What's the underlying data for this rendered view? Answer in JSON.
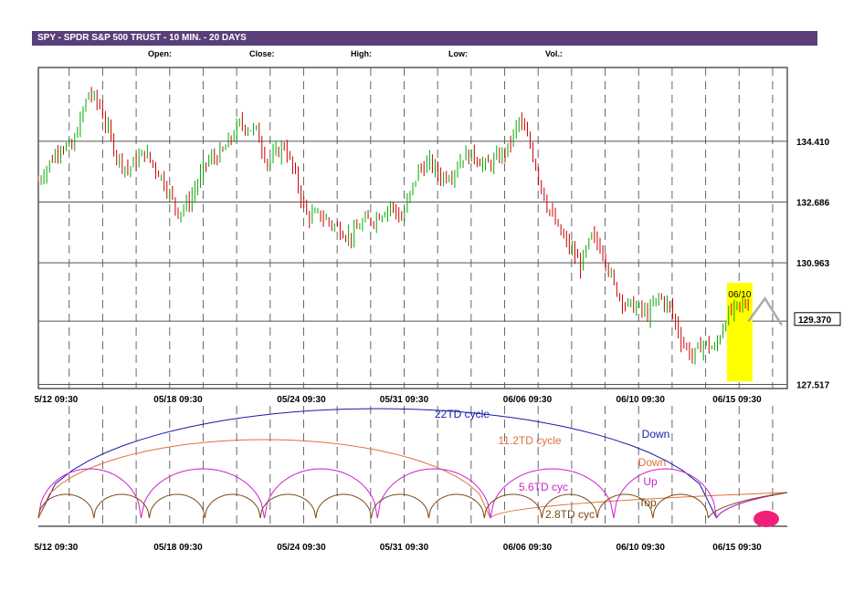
{
  "header": {
    "title": "SPY - SPDR S&P 500 TRUST - 10 MIN. - 20 DAYS",
    "fields": [
      {
        "label": "Open:"
      },
      {
        "label": "Close:"
      },
      {
        "label": "High:"
      },
      {
        "label": "Low:"
      },
      {
        "label": "Vol.:"
      }
    ]
  },
  "chart_data": [
    {
      "type": "candlestick",
      "title": "SPY - SPDR S&P 500 TRUST - 10 MIN. - 20 DAYS",
      "y_ticks": [
        "134.410",
        "132.686",
        "130.963",
        "127.517"
      ],
      "y_tick_values": [
        134.41,
        132.686,
        130.963,
        127.517
      ],
      "ylim": [
        127.4,
        136.5
      ],
      "last_price_label": "129.370",
      "last_price": 129.37,
      "x_ticks": [
        "5/12 09:30",
        "05/18 09:30",
        "05/24 09:30",
        "05/31 09:30",
        "06/06 09:30",
        "06/10 09:30",
        "06/15 09:30"
      ],
      "grid": true,
      "colors": {
        "up": "#00aa00",
        "down": "#cc0000",
        "highlight": "#ffff00",
        "projection": "#aaaaaa"
      },
      "highlight_label": "06/10",
      "price_path": [
        [
          0,
          133.3
        ],
        [
          4,
          134.3
        ],
        [
          6,
          134.2
        ],
        [
          9,
          135.8
        ],
        [
          11,
          135.4
        ],
        [
          14,
          134.0
        ],
        [
          16,
          133.6
        ],
        [
          19,
          134.1
        ],
        [
          22,
          133.4
        ],
        [
          25,
          132.4
        ],
        [
          27,
          132.7
        ],
        [
          30,
          133.8
        ],
        [
          33,
          134.1
        ],
        [
          36,
          134.9
        ],
        [
          39,
          134.7
        ],
        [
          41,
          133.8
        ],
        [
          44,
          134.3
        ],
        [
          46,
          133.4
        ],
        [
          48,
          132.3
        ],
        [
          50.5,
          132.3
        ],
        [
          53,
          132.0
        ],
        [
          56,
          131.7
        ],
        [
          58,
          132.1
        ],
        [
          60,
          132.2
        ],
        [
          63,
          132.6
        ],
        [
          65,
          132.2
        ],
        [
          68,
          133.6
        ],
        [
          70,
          133.8
        ],
        [
          72,
          133.4
        ],
        [
          74,
          133.5
        ],
        [
          76,
          134.0
        ],
        [
          78,
          134.0
        ],
        [
          80,
          133.7
        ],
        [
          82,
          133.9
        ],
        [
          84,
          134.2
        ],
        [
          86,
          135.0
        ],
        [
          88,
          134.3
        ],
        [
          89.5,
          133.4
        ],
        [
          91,
          132.6
        ],
        [
          93,
          131.9
        ],
        [
          95,
          131.4
        ],
        [
          97,
          130.9
        ],
        [
          99,
          131.7
        ],
        [
          101,
          131.3
        ],
        [
          103,
          130.3
        ],
        [
          105,
          129.8
        ],
        [
          107,
          129.7
        ],
        [
          109,
          129.5
        ],
        [
          111,
          130.0
        ],
        [
          113,
          129.7
        ],
        [
          115,
          128.8
        ],
        [
          117,
          128.3
        ],
        [
          119,
          128.7
        ],
        [
          121,
          128.5
        ],
        [
          123,
          129.4
        ],
        [
          125,
          129.7
        ],
        [
          127,
          129.8
        ]
      ],
      "projection": [
        [
          127,
          129.3
        ],
        [
          130,
          129.95
        ],
        [
          133,
          129.2
        ]
      ]
    },
    {
      "type": "cycle",
      "x_ticks": [
        "5/12 09:30",
        "05/18 09:30",
        "05/24 09:30",
        "05/31 09:30",
        "06/06 09:30",
        "06/10 09:30",
        "06/15 09:30"
      ],
      "series": [
        {
          "name": "22TD cycle",
          "color": "#1a1aa8",
          "status": "Down"
        },
        {
          "name": "11.2TD cycle",
          "color": "#e0703c",
          "status": "Down"
        },
        {
          "name": "5.6TD cyc",
          "color": "#cc22cc",
          "status": "Up"
        },
        {
          "name": "2.8TD cyc",
          "color": "#7a4a14",
          "status": "Top"
        }
      ],
      "lows": [
        {
          "cycle": "22TD cycle",
          "days": [
            0,
            33
          ]
        },
        {
          "cycle": "11.2TD cycle",
          "days": [
            0,
            22
          ]
        },
        {
          "cycle": "5.6TD cyc",
          "days": [
            0,
            5,
            11,
            16.5,
            22,
            28,
            33
          ]
        },
        {
          "cycle": "2.8TD cyc",
          "days": [
            0,
            2.7,
            5.4,
            8.1,
            10.8,
            13.5,
            16.2,
            19,
            21.7,
            24.5,
            27.2,
            29.9,
            32.6
          ]
        }
      ]
    }
  ]
}
